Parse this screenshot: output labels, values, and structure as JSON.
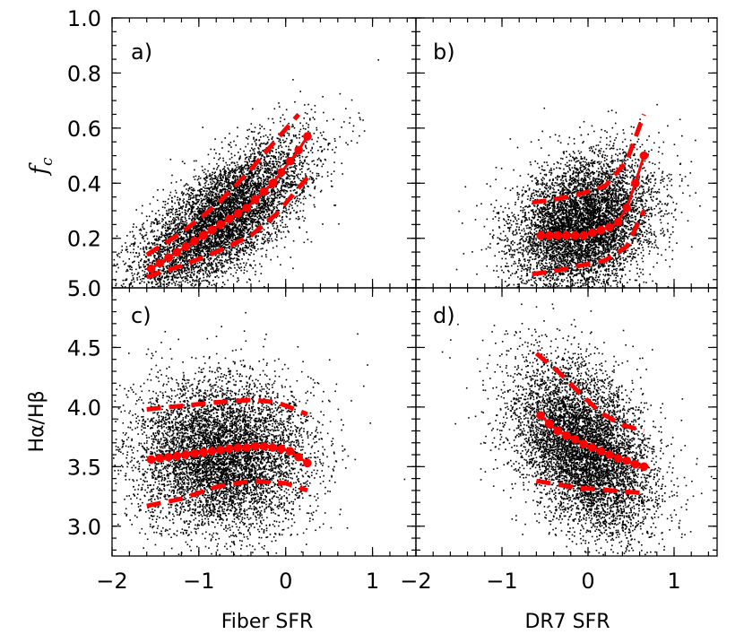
{
  "chart_data": {
    "type": "scatter",
    "shared": {
      "xlim": [
        -2.0,
        1.5
      ],
      "xticks": [
        -2,
        -1,
        0,
        1
      ],
      "xtick_labels": [
        "−2",
        "−1",
        "0",
        "1"
      ],
      "xlabel_left": "Fiber SFR",
      "xlabel_right": "DR7 SFR",
      "top_ylim": [
        0.02,
        1.0
      ],
      "top_yticks": [
        0.2,
        0.4,
        0.6,
        0.8,
        1.0
      ],
      "top_ytick_labels": [
        "0.2",
        "0.4",
        "0.6",
        "0.8",
        "1.0"
      ],
      "top_ylabel_main": "f",
      "top_ylabel_sub": "c",
      "bottom_ylim": [
        2.75,
        5.0
      ],
      "bottom_yticks": [
        3.0,
        3.5,
        4.0,
        4.5,
        5.0
      ],
      "bottom_ytick_labels": [
        "3.0",
        "3.5",
        "4.0",
        "4.5",
        "5.0"
      ],
      "bottom_ylabel": "Hα/Hβ"
    },
    "panels": [
      {
        "label": "a)",
        "xlabel": "Fiber SFR",
        "ylabel": "f_c",
        "scatter": {
          "n_points": 6500,
          "center_x": -0.75,
          "center_y": 0.27,
          "sd_x": 0.5,
          "sd_y": 0.1,
          "slope": 0.2,
          "y_range": [
            0.02,
            1.0
          ]
        },
        "median": {
          "x": [
            -1.55,
            -1.45,
            -1.35,
            -1.25,
            -1.15,
            -1.05,
            -0.95,
            -0.85,
            -0.75,
            -0.65,
            -0.55,
            -0.45,
            -0.35,
            -0.25,
            -0.15,
            -0.05,
            0.05,
            0.15,
            0.25
          ],
          "y": [
            0.09,
            0.11,
            0.13,
            0.15,
            0.17,
            0.19,
            0.21,
            0.23,
            0.25,
            0.27,
            0.29,
            0.31,
            0.34,
            0.37,
            0.4,
            0.44,
            0.48,
            0.52,
            0.57
          ]
        },
        "upper": {
          "x": [
            -1.6,
            -1.2,
            -0.8,
            -0.4,
            -0.1,
            0.15
          ],
          "y": [
            0.14,
            0.22,
            0.32,
            0.45,
            0.56,
            0.65
          ]
        },
        "lower": {
          "x": [
            -1.6,
            -1.2,
            -0.8,
            -0.4,
            -0.1,
            0.25
          ],
          "y": [
            0.06,
            0.1,
            0.15,
            0.21,
            0.29,
            0.42
          ]
        }
      },
      {
        "label": "b)",
        "xlabel": "DR7 SFR",
        "ylabel": "f_c",
        "scatter": {
          "n_points": 6500,
          "center_x": -0.05,
          "center_y": 0.25,
          "sd_x": 0.4,
          "sd_y": 0.12,
          "slope": 0.08,
          "y_range": [
            0.02,
            1.0
          ]
        },
        "median": {
          "x": [
            -0.55,
            -0.45,
            -0.35,
            -0.25,
            -0.15,
            -0.05,
            0.05,
            0.15,
            0.25,
            0.35,
            0.45,
            0.55,
            0.65
          ],
          "y": [
            0.21,
            0.21,
            0.21,
            0.21,
            0.21,
            0.21,
            0.22,
            0.23,
            0.24,
            0.26,
            0.31,
            0.4,
            0.5
          ]
        },
        "upper": {
          "x": [
            -0.65,
            -0.4,
            -0.1,
            0.2,
            0.45,
            0.65
          ],
          "y": [
            0.33,
            0.34,
            0.36,
            0.39,
            0.48,
            0.65
          ]
        },
        "lower": {
          "x": [
            -0.65,
            -0.4,
            -0.1,
            0.2,
            0.45,
            0.65
          ],
          "y": [
            0.07,
            0.08,
            0.1,
            0.12,
            0.17,
            0.3
          ]
        }
      },
      {
        "label": "c)",
        "xlabel": "Fiber SFR",
        "ylabel": "Hα/Hβ",
        "scatter": {
          "n_points": 6500,
          "center_x": -0.75,
          "center_y": 3.6,
          "sd_x": 0.5,
          "sd_y": 0.32,
          "slope": 0.0,
          "y_range": [
            2.75,
            5.0
          ]
        },
        "median": {
          "x": [
            -1.55,
            -1.45,
            -1.35,
            -1.25,
            -1.15,
            -1.05,
            -0.95,
            -0.85,
            -0.75,
            -0.65,
            -0.55,
            -0.45,
            -0.35,
            -0.25,
            -0.15,
            -0.05,
            0.05,
            0.15,
            0.25
          ],
          "y": [
            3.56,
            3.57,
            3.58,
            3.59,
            3.6,
            3.61,
            3.62,
            3.63,
            3.64,
            3.65,
            3.66,
            3.66,
            3.67,
            3.67,
            3.66,
            3.65,
            3.63,
            3.58,
            3.53
          ]
        },
        "upper": {
          "x": [
            -1.6,
            -1.2,
            -0.8,
            -0.4,
            -0.1,
            0.25
          ],
          "y": [
            3.98,
            4.01,
            4.04,
            4.06,
            4.04,
            3.94
          ]
        },
        "lower": {
          "x": [
            -1.6,
            -1.2,
            -0.8,
            -0.4,
            0.0,
            0.25
          ],
          "y": [
            3.17,
            3.23,
            3.33,
            3.38,
            3.36,
            3.3
          ]
        }
      },
      {
        "label": "d)",
        "xlabel": "DR7 SFR",
        "ylabel": "Hα/Hβ",
        "scatter": {
          "n_points": 6500,
          "center_x": -0.05,
          "center_y": 3.65,
          "sd_x": 0.4,
          "sd_y": 0.33,
          "slope": -0.35,
          "y_range": [
            2.75,
            5.0
          ]
        },
        "median": {
          "x": [
            -0.55,
            -0.45,
            -0.35,
            -0.25,
            -0.15,
            -0.05,
            0.05,
            0.15,
            0.25,
            0.35,
            0.45,
            0.55,
            0.65
          ],
          "y": [
            3.93,
            3.86,
            3.8,
            3.76,
            3.73,
            3.69,
            3.66,
            3.63,
            3.6,
            3.57,
            3.55,
            3.52,
            3.5
          ]
        },
        "upper": {
          "x": [
            -0.6,
            -0.35,
            -0.1,
            0.15,
            0.4,
            0.65
          ],
          "y": [
            4.45,
            4.3,
            4.12,
            3.95,
            3.85,
            3.8
          ]
        },
        "lower": {
          "x": [
            -0.6,
            -0.35,
            -0.1,
            0.15,
            0.4,
            0.65
          ],
          "y": [
            3.38,
            3.35,
            3.32,
            3.31,
            3.29,
            3.28
          ]
        }
      }
    ]
  }
}
